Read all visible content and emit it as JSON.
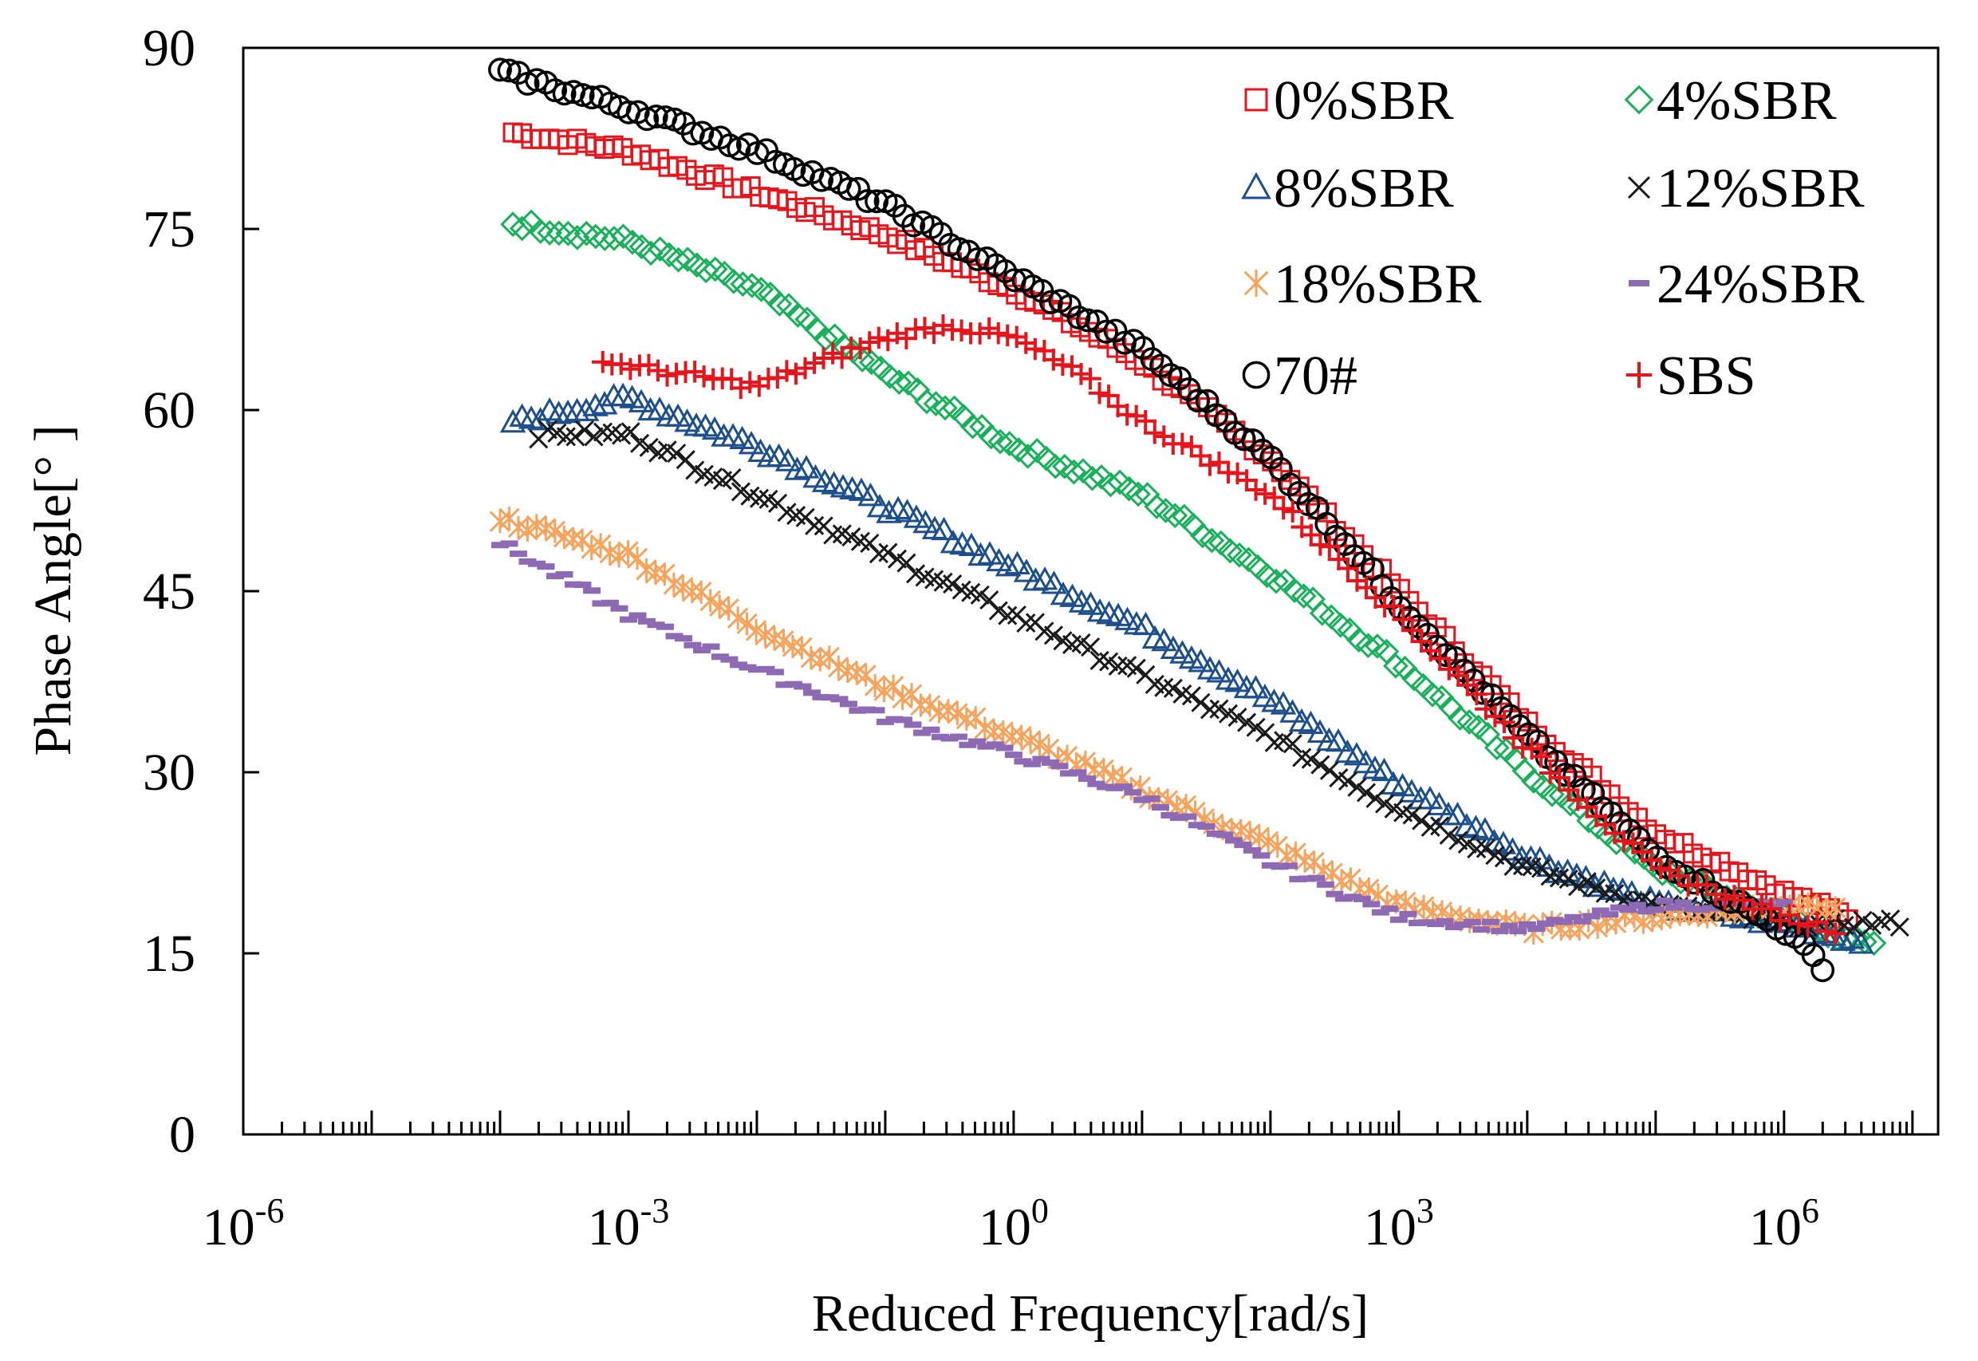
{
  "chart_data": {
    "type": "scatter",
    "title": "",
    "xlabel": "Reduced Frequency[rad/s]",
    "ylabel": "Phase Angle[° ]",
    "xscale": "log",
    "xlim_exp": [
      -6,
      7.2
    ],
    "ylim": [
      0,
      90
    ],
    "yticks": [
      "0",
      "15",
      "30",
      "45",
      "60",
      "75",
      "90"
    ],
    "xticks": [
      {
        "base": "10",
        "exp": "-6"
      },
      {
        "base": "10",
        "exp": "-3"
      },
      {
        "base": "10",
        "exp": "0"
      },
      {
        "base": "10",
        "exp": "3"
      },
      {
        "base": "10",
        "exp": "6"
      }
    ],
    "legend_position": "top-right",
    "series": [
      {
        "name": "0%SBR",
        "marker": "square",
        "color": "#e8141b",
        "x_log_start": -3.9,
        "x_log_end": 6.5,
        "y": [
          [
            -3.9,
            83
          ],
          [
            -3.0,
            81.5
          ],
          [
            -2.0,
            78
          ],
          [
            -1.0,
            74.5
          ],
          [
            0.0,
            70
          ],
          [
            1.0,
            64
          ],
          [
            2.0,
            56
          ],
          [
            3.0,
            45
          ],
          [
            4.0,
            34
          ],
          [
            5.0,
            25
          ],
          [
            6.0,
            20
          ],
          [
            6.5,
            18
          ]
        ]
      },
      {
        "name": "4%SBR",
        "marker": "diamond",
        "color": "#17b15a",
        "x_log_start": -3.9,
        "x_log_end": 6.7,
        "y": [
          [
            -3.9,
            75.5
          ],
          [
            -3.0,
            74
          ],
          [
            -2.0,
            70
          ],
          [
            -1.0,
            63
          ],
          [
            0.0,
            57
          ],
          [
            1.0,
            53
          ],
          [
            2.0,
            46.5
          ],
          [
            3.0,
            39
          ],
          [
            4.0,
            30
          ],
          [
            5.0,
            22
          ],
          [
            6.0,
            18
          ],
          [
            6.7,
            15.5
          ]
        ]
      },
      {
        "name": "8%SBR",
        "marker": "triangle",
        "color": "#1c4f8c",
        "x_log_start": -3.9,
        "x_log_end": 6.6,
        "y": [
          [
            -3.9,
            59
          ],
          [
            -3.0,
            61
          ],
          [
            -2.0,
            57
          ],
          [
            -1.0,
            52
          ],
          [
            0.0,
            47
          ],
          [
            1.0,
            42
          ],
          [
            2.0,
            36
          ],
          [
            3.0,
            29
          ],
          [
            4.0,
            23
          ],
          [
            5.0,
            19
          ],
          [
            6.0,
            17.5
          ],
          [
            6.6,
            16
          ]
        ]
      },
      {
        "name": "12%SBR",
        "marker": "x",
        "color": "#1a1a1a",
        "x_log_start": -3.7,
        "x_log_end": 6.9,
        "y": [
          [
            -3.7,
            58
          ],
          [
            -3.0,
            58
          ],
          [
            -2.0,
            53
          ],
          [
            -1.0,
            48
          ],
          [
            0.0,
            43
          ],
          [
            1.0,
            38
          ],
          [
            2.0,
            33
          ],
          [
            3.0,
            27
          ],
          [
            4.0,
            22
          ],
          [
            5.0,
            19
          ],
          [
            6.0,
            17.5
          ],
          [
            6.9,
            17.5
          ]
        ]
      },
      {
        "name": "18%SBR",
        "marker": "asterisk",
        "color": "#f7a35c",
        "x_log_start": -4.0,
        "x_log_end": 6.4,
        "y": [
          [
            -4.0,
            51
          ],
          [
            -3.0,
            48
          ],
          [
            -2.0,
            42
          ],
          [
            -1.0,
            37
          ],
          [
            0.0,
            33
          ],
          [
            1.0,
            28.5
          ],
          [
            2.0,
            24
          ],
          [
            3.0,
            19
          ],
          [
            4.0,
            17
          ],
          [
            5.0,
            18
          ],
          [
            6.0,
            19
          ],
          [
            6.4,
            19
          ]
        ]
      },
      {
        "name": "24%SBR",
        "marker": "dash",
        "color": "#8e6ab4",
        "x_log_start": -4.0,
        "x_log_end": 6.0,
        "y": [
          [
            -4.0,
            49
          ],
          [
            -3.0,
            43
          ],
          [
            -2.0,
            38.5
          ],
          [
            -1.0,
            34.5
          ],
          [
            0.0,
            31.5
          ],
          [
            1.0,
            28
          ],
          [
            2.0,
            22.5
          ],
          [
            3.0,
            18
          ],
          [
            4.0,
            17
          ],
          [
            5.0,
            19
          ],
          [
            6.0,
            19
          ]
        ]
      },
      {
        "name": "70#",
        "marker": "circle",
        "color": "#000000",
        "x_log_start": -4.0,
        "x_log_end": 6.3,
        "y": [
          [
            -4.0,
            88
          ],
          [
            -3.0,
            85
          ],
          [
            -2.0,
            81.5
          ],
          [
            -1.0,
            77
          ],
          [
            0.0,
            71
          ],
          [
            1.0,
            65
          ],
          [
            2.0,
            56
          ],
          [
            3.0,
            44
          ],
          [
            4.0,
            33
          ],
          [
            5.0,
            23
          ],
          [
            6.0,
            17
          ],
          [
            6.3,
            14
          ]
        ]
      },
      {
        "name": "SBS",
        "marker": "plus",
        "color": "#e8141b",
        "x_log_start": -3.2,
        "x_log_end": 6.4,
        "y": [
          [
            -3.2,
            64
          ],
          [
            -2.6,
            63
          ],
          [
            -2.0,
            62
          ],
          [
            -1.5,
            64
          ],
          [
            -1.0,
            66
          ],
          [
            -0.5,
            67
          ],
          [
            0.0,
            66
          ],
          [
            0.5,
            63
          ],
          [
            1.0,
            59
          ],
          [
            2.0,
            53
          ],
          [
            3.0,
            43
          ],
          [
            4.0,
            32
          ],
          [
            5.0,
            22
          ],
          [
            6.0,
            18
          ],
          [
            6.4,
            17
          ]
        ]
      }
    ]
  }
}
